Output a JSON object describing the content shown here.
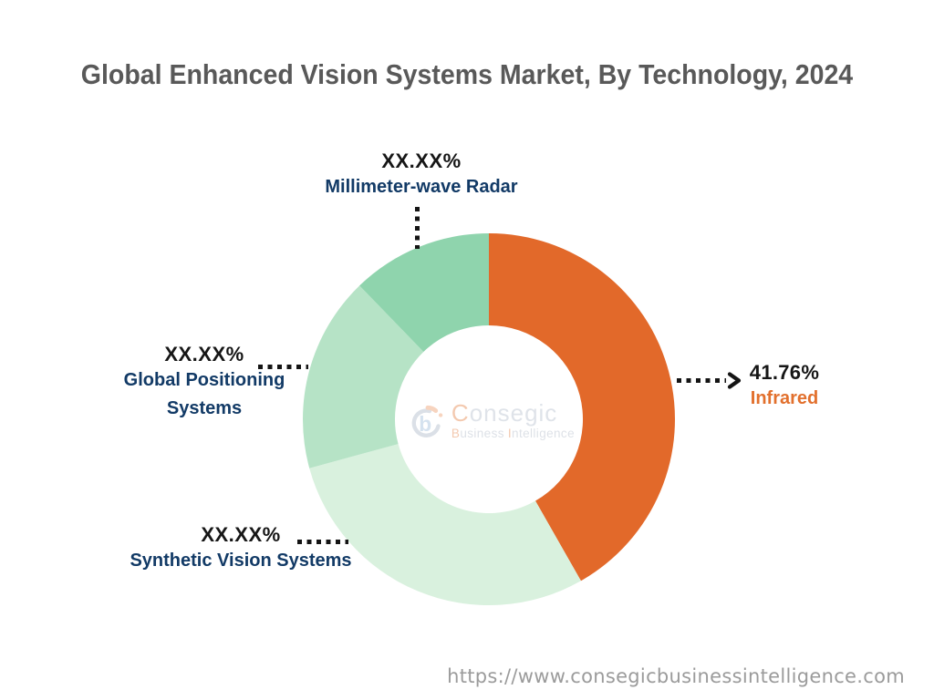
{
  "title": "Global Enhanced Vision Systems Market, By Technology, 2024",
  "colors": {
    "title_gray": "#595959",
    "value_black": "#161616",
    "category_navy": "#123a66",
    "accent_orange": "#e2702d",
    "url_gray": "#9b9b9b",
    "connector_black": "#141414"
  },
  "watermark": {
    "brand_initial": "C",
    "brand_rest": "onsegic",
    "tagline_initial": "B",
    "tagline_mid": "usiness",
    "tagline_initial2": "I",
    "tagline_rest": "ntelligence"
  },
  "footer": {
    "url": "https://www.consegicbusinessintelligence.com"
  },
  "chart_data": {
    "type": "pie",
    "donut": true,
    "title": "Global Enhanced Vision Systems Market, By Technology, 2024",
    "start_angle_deg": 0,
    "direction": "clockwise",
    "legend_position": "callouts",
    "inner_radius_ratio": 0.505,
    "segments": [
      {
        "label": "Infrared",
        "value_label": "41.76%",
        "value": 41.76,
        "color": "#e2692a",
        "label_color": "#e2702d"
      },
      {
        "label": "Synthetic Vision Systems",
        "value_label": "XX.XX%",
        "value": 29.0,
        "color": "#d9f1de",
        "label_color": "#123a66"
      },
      {
        "label": "Global Positioning Systems",
        "value_label": "XX.XX%",
        "value": 17.0,
        "color": "#b6e3c6",
        "label_color": "#123a66"
      },
      {
        "label": "Millimeter-wave Radar",
        "value_label": "XX.XX%",
        "value": 12.24,
        "color": "#8fd4ad",
        "label_color": "#123a66"
      }
    ]
  }
}
